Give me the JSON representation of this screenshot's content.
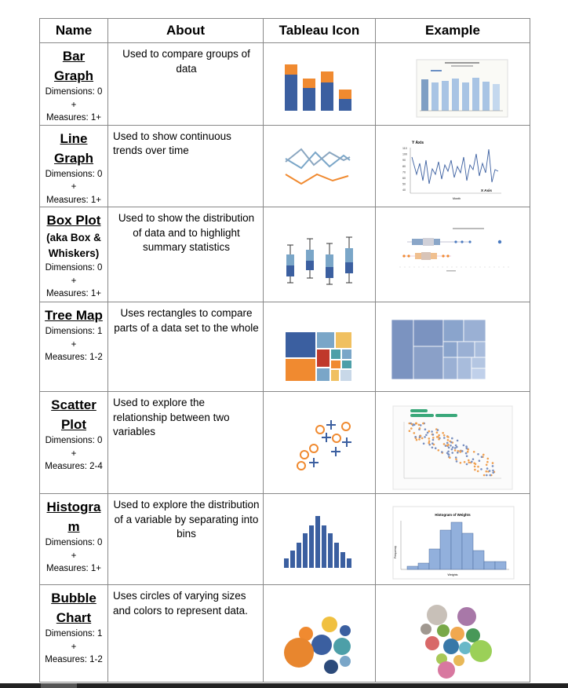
{
  "headers": {
    "name": "Name",
    "about": "About",
    "icon": "Tableau Icon",
    "example": "Example"
  },
  "rows": [
    {
      "title1": "Bar",
      "title2": "Graph",
      "dims": "Dimensions: 0",
      "plus": "+",
      "meas": "Measures: 1+",
      "about": "Used to compare groups of data"
    },
    {
      "title1": "Line",
      "title2": "Graph",
      "dims": "Dimensions: 0",
      "plus": "+",
      "meas": "Measures: 1+",
      "about": "Used to show continuous trends over time"
    },
    {
      "title1": "Box Plot",
      "sub": "(aka Box & Whiskers)",
      "dims": "Dimensions: 0",
      "plus": "+",
      "meas": "Measures: 1+",
      "about": "Used to show the distribution of data and to highlight summary statistics"
    },
    {
      "title1": "Tree Map",
      "dims": "Dimensions: 1",
      "plus": "+",
      "meas": "Measures: 1-2",
      "about": "Uses rectangles to compare parts of a data set to the whole"
    },
    {
      "title1": "Scatter",
      "title2": "Plot",
      "dims": "Dimensions: 0",
      "plus": "+",
      "meas": "Measures: 2-4",
      "about": "Used to explore the relationship between two variables"
    },
    {
      "title1": "Histogra",
      "title2": "m",
      "dims": "Dimensions: 0",
      "plus": "+",
      "meas": "Measures: 1+",
      "about": "Used to explore the distribution of a variable by separating into bins"
    },
    {
      "title1": "Bubble",
      "title2": "Chart",
      "dims": "Dimensions: 1",
      "plus": "+",
      "meas": "Measures: 1-2",
      "about": "Uses circles of varying sizes and colors to represent data."
    }
  ],
  "examples": {
    "line_y_title": "Y Axis",
    "line_x_title": "X Axis",
    "line_x_sub": "Month",
    "line_y_ticks": [
      "110",
      "100",
      "90",
      "80",
      "70",
      "60",
      "50",
      "40"
    ],
    "hist_title": "Histogram of Weights",
    "hist_xlabel": "Weights",
    "hist_ylabel": "Frequency"
  },
  "colors": {
    "blue": "#3b5fa0",
    "orange": "#f08a30",
    "lightblue": "#7aa6c8",
    "teal": "#4d9fa8",
    "border": "#888888"
  }
}
